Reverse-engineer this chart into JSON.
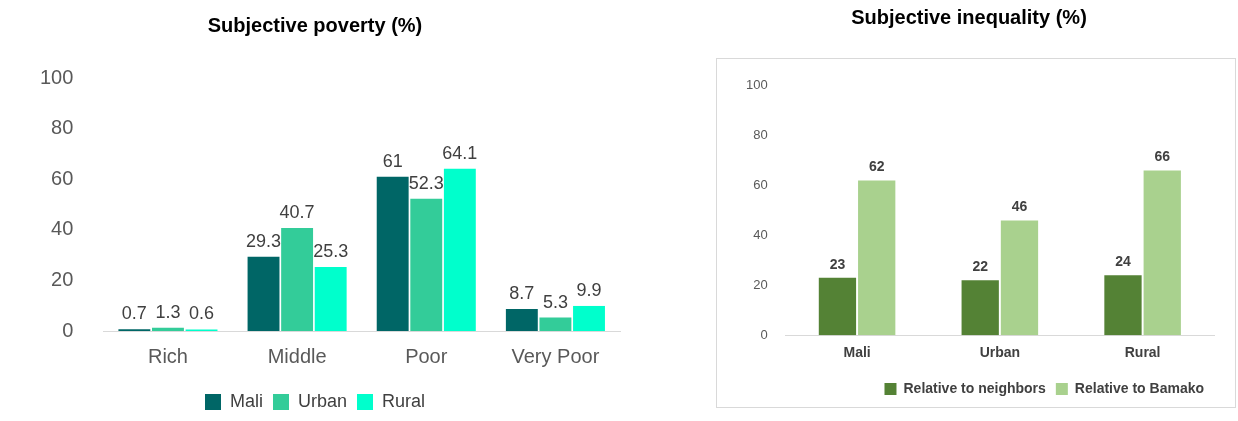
{
  "chart_data": [
    {
      "type": "bar",
      "title": "Subjective poverty (%)",
      "categories": [
        "Rich",
        "Middle",
        "Poor",
        "Very Poor"
      ],
      "series": [
        {
          "name": "Mali",
          "color": "#006666",
          "values": [
            0.7,
            29.3,
            61,
            8.7
          ]
        },
        {
          "name": "Urban",
          "color": "#33cc99",
          "values": [
            1.3,
            40.7,
            52.3,
            5.3
          ]
        },
        {
          "name": "Rural",
          "color": "#00ffcc",
          "values": [
            0.6,
            25.3,
            64.1,
            9.9
          ]
        }
      ],
      "ylim": [
        0,
        100
      ],
      "yticks": [
        0,
        20,
        40,
        60,
        80,
        100
      ],
      "data_labels": true,
      "legend": "bottom"
    },
    {
      "type": "bar",
      "title": "Subjective inequality (%)",
      "categories": [
        "Mali",
        "Urban",
        "Rural"
      ],
      "series": [
        {
          "name": "Relative to neighbors",
          "color": "#548235",
          "values": [
            23,
            22,
            24
          ]
        },
        {
          "name": "Relative to Bamako",
          "color": "#a9d18e",
          "values": [
            62,
            46,
            66
          ]
        }
      ],
      "ylim": [
        0,
        100
      ],
      "yticks": [
        0,
        20,
        40,
        60,
        80,
        100
      ],
      "data_labels": true,
      "legend": "bottom right"
    }
  ]
}
